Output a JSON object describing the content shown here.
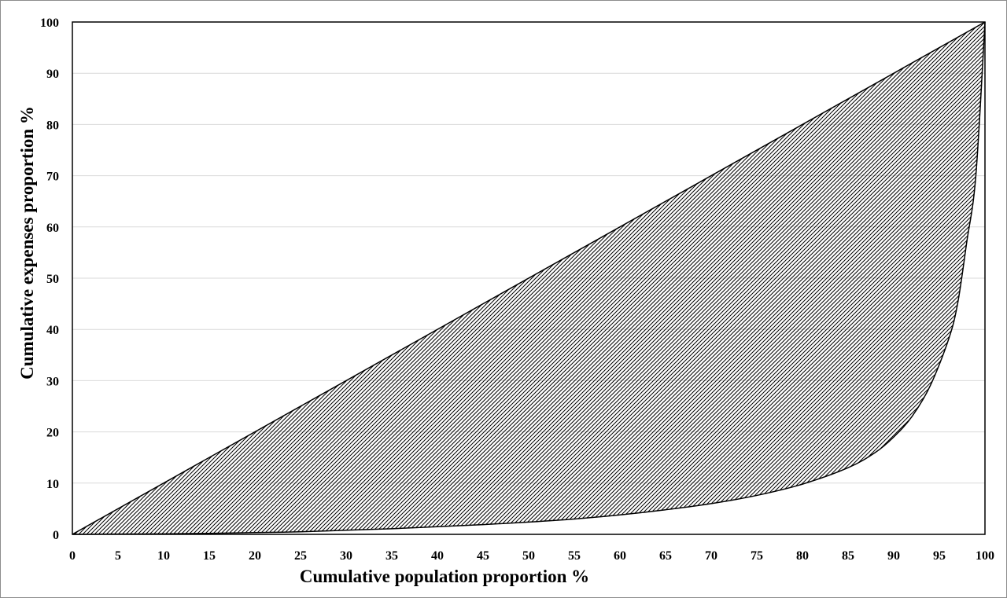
{
  "chart_data": {
    "type": "area",
    "title": "",
    "xlabel": "Cumulative population proportion %",
    "ylabel": "Cumulative expenses proportion  %",
    "xlim": [
      0,
      100
    ],
    "ylim": [
      0,
      100
    ],
    "x_ticks": [
      "0",
      "5",
      "10",
      "15",
      "20",
      "25",
      "30",
      "35",
      "40",
      "45",
      "50",
      "55",
      "60",
      "65",
      "70",
      "75",
      "80",
      "85",
      "90",
      "95",
      "100"
    ],
    "y_ticks": [
      "0",
      "10",
      "20",
      "30",
      "40",
      "50",
      "60",
      "70",
      "80",
      "90",
      "100"
    ],
    "grid": "horizontal",
    "legend": "none",
    "fill": "diagonal-hatch",
    "series": [
      {
        "style": "equality-line",
        "x": [
          0,
          100
        ],
        "y": [
          0,
          100
        ]
      },
      {
        "style": "lorenz-curve",
        "x": [
          0,
          5,
          10,
          15,
          20,
          25,
          30,
          35,
          40,
          45,
          50,
          55,
          60,
          65,
          70,
          75,
          80,
          85,
          88,
          90,
          92,
          94,
          96,
          97,
          98,
          99,
          100
        ],
        "y": [
          0,
          0.05,
          0.1,
          0.2,
          0.35,
          0.5,
          0.8,
          1.1,
          1.5,
          1.9,
          2.4,
          3.0,
          3.8,
          4.8,
          6.0,
          7.6,
          9.8,
          13.0,
          16.0,
          19.0,
          23.0,
          29.0,
          38.0,
          45.0,
          57.0,
          70.0,
          100.0
        ]
      }
    ],
    "colors": {
      "line": "#000000",
      "hatch": "#000000",
      "grid": "#d9d9d9",
      "background": "#ffffff"
    }
  }
}
